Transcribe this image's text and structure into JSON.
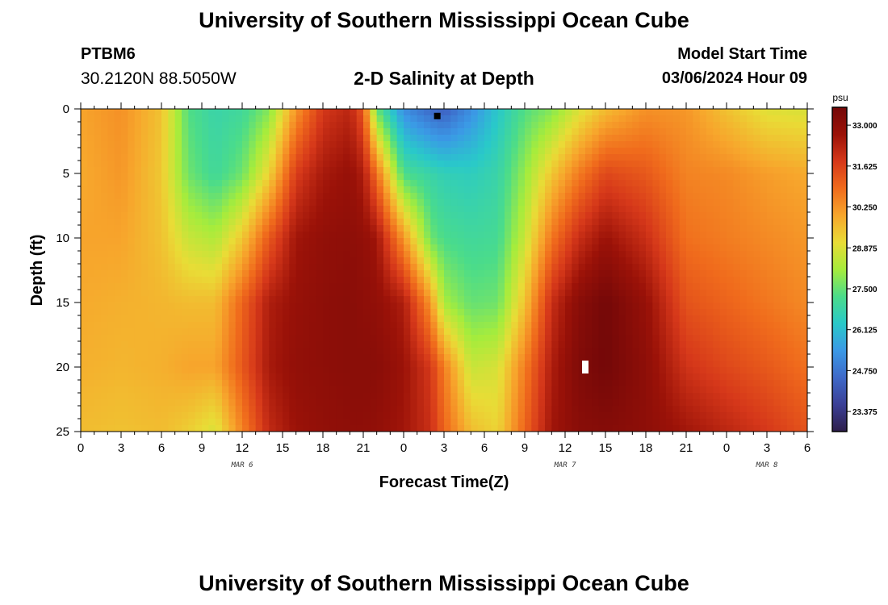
{
  "header": {
    "title": "University of Southern Mississippi Ocean Cube",
    "station": "PTBM6",
    "coords": "30.2120N  88.5050W",
    "subtitle": "2-D Salinity at Depth",
    "model_label": "Model Start Time",
    "model_value": "03/06/2024 Hour 09"
  },
  "footer": {
    "title": "University of Southern Mississippi Ocean Cube"
  },
  "chart_data": {
    "type": "heatmap",
    "title": "2-D Salinity at Depth",
    "xlabel": "Forecast Time(Z)",
    "ylabel": "Depth (ft)",
    "x_tick_labels": [
      "0",
      "3",
      "6",
      "9",
      "12",
      "15",
      "18",
      "21",
      "0",
      "3",
      "6",
      "9",
      "12",
      "15",
      "18",
      "21",
      "0",
      "3",
      "6"
    ],
    "x_range_hours": [
      0,
      54
    ],
    "day_labels": [
      {
        "label": "MAR 6",
        "hour": 12
      },
      {
        "label": "MAR 7",
        "hour": 36
      },
      {
        "label": "MAR 8",
        "hour": 51
      }
    ],
    "y_tick_labels": [
      "0",
      "5",
      "10",
      "15",
      "20",
      "25"
    ],
    "y_range_ft": [
      0,
      25
    ],
    "y_inverted": true,
    "colorbar": {
      "unit": "psu",
      "min": 22.7,
      "max": 33.6,
      "labels": [
        "33.000",
        "31.625",
        "30.250",
        "28.875",
        "27.500",
        "26.125",
        "24.750",
        "23.375"
      ],
      "label_values": [
        33.0,
        31.625,
        30.25,
        28.875,
        27.5,
        26.125,
        24.75,
        23.375
      ],
      "colors": [
        "#2d1e4a",
        "#3b3f96",
        "#3e69c8",
        "#3b99e6",
        "#29c9c9",
        "#4bdc8a",
        "#a6ec3c",
        "#e9dc36",
        "#f7a62c",
        "#f06b1c",
        "#d6381a",
        "#9b1208",
        "#740808"
      ]
    },
    "salinity_profiles": [
      {
        "hour": 0,
        "depths_ft": [
          0,
          5,
          10,
          15,
          20,
          25
        ],
        "psu": [
          30.0,
          29.9,
          30.0,
          29.9,
          29.8,
          29.6
        ]
      },
      {
        "hour": 3,
        "depths_ft": [
          0,
          5,
          10,
          15,
          20,
          25
        ],
        "psu": [
          30.3,
          30.2,
          30.0,
          29.8,
          29.7,
          29.5
        ]
      },
      {
        "hour": 6,
        "depths_ft": [
          0,
          5,
          10,
          15,
          20,
          25
        ],
        "psu": [
          29.5,
          29.4,
          29.5,
          29.7,
          29.8,
          29.6
        ]
      },
      {
        "hour": 8,
        "depths_ft": [
          0,
          5,
          10,
          15,
          20,
          25
        ],
        "psu": [
          27.3,
          27.6,
          28.6,
          29.6,
          30.0,
          29.3
        ]
      },
      {
        "hour": 10,
        "depths_ft": [
          0,
          5,
          10,
          15,
          20,
          25
        ],
        "psu": [
          26.8,
          27.0,
          28.3,
          29.6,
          30.0,
          28.8
        ]
      },
      {
        "hour": 12,
        "depths_ft": [
          0,
          5,
          10,
          15,
          20,
          25
        ],
        "psu": [
          27.0,
          27.6,
          29.4,
          31.0,
          31.2,
          30.5
        ]
      },
      {
        "hour": 14,
        "depths_ft": [
          0,
          5,
          10,
          15,
          20,
          25
        ],
        "psu": [
          27.8,
          29.2,
          31.2,
          32.4,
          32.5,
          32.1
        ]
      },
      {
        "hour": 16,
        "depths_ft": [
          0,
          5,
          10,
          15,
          20,
          25
        ],
        "psu": [
          30.2,
          31.7,
          32.6,
          32.8,
          32.9,
          32.7
        ]
      },
      {
        "hour": 18,
        "depths_ft": [
          0,
          5,
          10,
          15,
          20,
          25
        ],
        "psu": [
          31.8,
          32.5,
          32.9,
          33.0,
          33.0,
          32.9
        ]
      },
      {
        "hour": 20,
        "depths_ft": [
          0,
          5,
          10,
          15,
          20,
          25
        ],
        "psu": [
          32.2,
          32.8,
          33.0,
          33.1,
          33.1,
          33.0
        ]
      },
      {
        "hour": 21,
        "depths_ft": [
          0,
          5,
          10,
          15,
          20,
          25
        ],
        "psu": [
          31.2,
          32.4,
          32.9,
          33.0,
          33.1,
          33.0
        ]
      },
      {
        "hour": 22,
        "depths_ft": [
          0,
          5,
          10,
          15,
          20,
          25
        ],
        "psu": [
          27.5,
          30.8,
          32.6,
          32.9,
          33.1,
          32.9
        ]
      },
      {
        "hour": 24,
        "depths_ft": [
          0,
          5,
          10,
          15,
          20,
          25
        ],
        "psu": [
          25.2,
          27.2,
          30.2,
          32.4,
          32.7,
          32.6
        ]
      },
      {
        "hour": 26,
        "depths_ft": [
          0,
          5,
          10,
          15,
          20,
          25
        ],
        "psu": [
          24.5,
          26.8,
          27.6,
          30.2,
          31.8,
          32.0
        ]
      },
      {
        "hour": 27,
        "depths_ft": [
          0,
          5,
          10,
          15,
          20,
          25
        ],
        "psu": [
          24.3,
          26.6,
          27.2,
          28.2,
          30.6,
          31.0
        ]
      },
      {
        "hour": 29,
        "depths_ft": [
          0,
          5,
          10,
          15,
          20,
          25
        ],
        "psu": [
          25.2,
          26.5,
          27.0,
          27.5,
          28.6,
          29.6
        ]
      },
      {
        "hour": 31,
        "depths_ft": [
          0,
          5,
          10,
          15,
          20,
          25
        ],
        "psu": [
          26.3,
          26.8,
          27.1,
          27.6,
          28.8,
          29.2
        ]
      },
      {
        "hour": 33,
        "depths_ft": [
          0,
          5,
          10,
          15,
          20,
          25
        ],
        "psu": [
          27.3,
          28.0,
          28.6,
          29.5,
          30.6,
          31.0
        ]
      },
      {
        "hour": 35,
        "depths_ft": [
          0,
          5,
          10,
          15,
          20,
          25
        ],
        "psu": [
          27.8,
          29.4,
          30.7,
          32.0,
          32.4,
          32.6
        ]
      },
      {
        "hour": 37,
        "depths_ft": [
          0,
          5,
          10,
          15,
          20,
          25
        ],
        "psu": [
          28.8,
          30.6,
          32.0,
          33.1,
          33.3,
          33.1
        ]
      },
      {
        "hour": 39,
        "depths_ft": [
          0,
          5,
          10,
          15,
          20,
          25
        ],
        "psu": [
          29.6,
          31.5,
          32.7,
          33.6,
          33.6,
          33.2
        ]
      },
      {
        "hour": 42,
        "depths_ft": [
          0,
          5,
          10,
          15,
          20,
          25
        ],
        "psu": [
          30.3,
          31.2,
          32.0,
          32.8,
          33.0,
          33.0
        ]
      },
      {
        "hour": 45,
        "depths_ft": [
          0,
          5,
          10,
          15,
          20,
          25
        ],
        "psu": [
          30.2,
          30.5,
          30.8,
          31.3,
          31.9,
          32.6
        ]
      },
      {
        "hour": 48,
        "depths_ft": [
          0,
          5,
          10,
          15,
          20,
          25
        ],
        "psu": [
          29.5,
          30.4,
          30.6,
          31.0,
          31.5,
          32.2
        ]
      },
      {
        "hour": 51,
        "depths_ft": [
          0,
          5,
          10,
          15,
          20,
          25
        ],
        "psu": [
          28.9,
          30.1,
          30.4,
          30.7,
          31.2,
          31.8
        ]
      },
      {
        "hour": 54,
        "depths_ft": [
          0,
          5,
          10,
          15,
          20,
          25
        ],
        "psu": [
          28.8,
          29.9,
          30.2,
          30.4,
          30.8,
          31.3
        ]
      }
    ],
    "markers": [
      {
        "name": "minimum-marker",
        "hour": 26.5,
        "depth_ft": 0.3,
        "color": "#000000"
      },
      {
        "name": "maximum-marker",
        "hour": 37.5,
        "depth_ft": 20.0,
        "color": "#ffffff"
      }
    ]
  }
}
